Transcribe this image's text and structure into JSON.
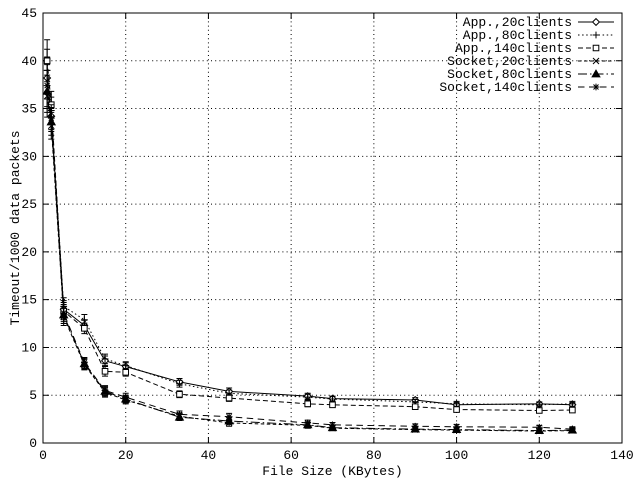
{
  "figure": {
    "background": "#ffffff",
    "foreground": "#000000",
    "grid_style": "dotted"
  },
  "chart_data": {
    "type": "line",
    "title": "",
    "xlabel": "File Size (KBytes)",
    "ylabel": "Timeout/1000 data packets",
    "xlim": [
      0,
      140
    ],
    "ylim": [
      0,
      45
    ],
    "xticks": [
      0,
      20,
      40,
      60,
      80,
      100,
      120,
      140
    ],
    "yticks": [
      0,
      5,
      10,
      15,
      20,
      25,
      30,
      35,
      40,
      45
    ],
    "grid": true,
    "legend_position": "top-right",
    "x": [
      1,
      2,
      5,
      10,
      15,
      20,
      33,
      45,
      64,
      70,
      90,
      100,
      120,
      128
    ],
    "errors": [
      2.2,
      1.4,
      0.9,
      0.55,
      0.5,
      0.4,
      0.35,
      0.35,
      0.3,
      0.25,
      0.25,
      0.25,
      0.2,
      0.25
    ],
    "series": [
      {
        "name": "App.,20clients",
        "marker": "diamond",
        "dash": "solid",
        "values": [
          38.2,
          34.2,
          14.0,
          12.3,
          8.6,
          8.0,
          6.4,
          5.4,
          4.9,
          4.65,
          4.5,
          4.0,
          4.1,
          4.0
        ]
      },
      {
        "name": "App.,80clients",
        "marker": "plus",
        "dash": "dotted",
        "values": [
          39.0,
          34.8,
          14.3,
          12.9,
          8.8,
          8.1,
          6.2,
          5.2,
          4.8,
          4.6,
          4.3,
          4.1,
          4.0,
          4.1
        ]
      },
      {
        "name": "App.,140clients",
        "marker": "square",
        "dash": "dashed",
        "values": [
          40.0,
          35.4,
          13.8,
          12.0,
          7.5,
          7.4,
          5.1,
          4.7,
          4.1,
          4.0,
          3.8,
          3.5,
          3.4,
          3.45
        ]
      },
      {
        "name": "Socket,20clients",
        "marker": "x",
        "dash": "dashed-short",
        "values": [
          36.3,
          33.2,
          13.2,
          8.2,
          5.3,
          4.5,
          2.8,
          2.1,
          1.85,
          1.55,
          1.4,
          1.35,
          1.25,
          1.3
        ]
      },
      {
        "name": "Socket,80clients",
        "marker": "triangle-filled",
        "dash": "dash-dot",
        "values": [
          36.8,
          33.6,
          13.4,
          8.3,
          5.4,
          4.6,
          2.7,
          2.3,
          1.9,
          1.6,
          1.45,
          1.4,
          1.3,
          1.35
        ]
      },
      {
        "name": "Socket,140clients",
        "marker": "asterisk",
        "dash": "dashed-long",
        "values": [
          37.4,
          34.0,
          13.6,
          8.4,
          5.5,
          4.8,
          3.0,
          2.75,
          2.1,
          1.9,
          1.75,
          1.7,
          1.65,
          1.45
        ]
      }
    ]
  }
}
